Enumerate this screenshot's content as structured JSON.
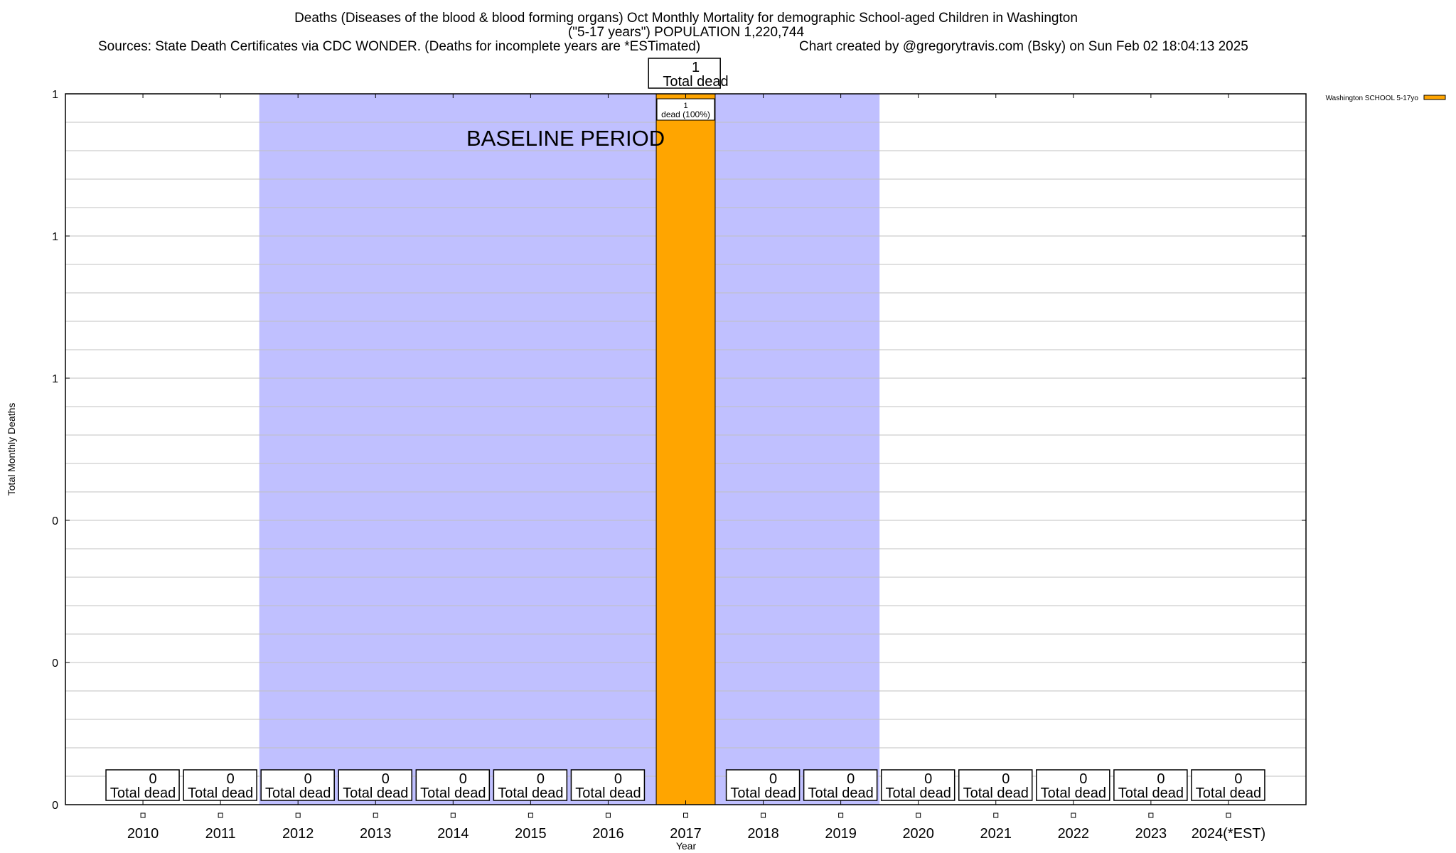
{
  "chart_data": {
    "type": "bar",
    "title_lines": [
      "Deaths (Diseases of the blood & blood forming organs) Oct Monthly Mortality for demographic School-aged Children in Washington",
      "(\"5-17 years\") POPULATION 1,220,744"
    ],
    "sources": "Sources: State Death Certificates via CDC WONDER. (Deaths for incomplete years are *ESTimated)",
    "credit": "Chart created by @gregorytravis.com (Bsky) on Sun Feb 02 18:04:13 2025",
    "xlabel": "Year",
    "ylabel": "Total Monthly Deaths",
    "categories": [
      "2010",
      "2011",
      "2012",
      "2013",
      "2014",
      "2015",
      "2016",
      "2017",
      "2018",
      "2019",
      "2020",
      "2021",
      "2022",
      "2023",
      "2024(*EST)"
    ],
    "series": [
      {
        "name": "Washington SCHOOL 5-17yo",
        "color": "#ffa500",
        "values": [
          0,
          0,
          0,
          0,
          0,
          0,
          0,
          1,
          0,
          0,
          0,
          0,
          0,
          0,
          0
        ]
      }
    ],
    "total_label_suffix": "Total dead",
    "bar_inner_label": {
      "category": "2017",
      "count": "1",
      "text": "dead (100%)"
    },
    "ylim": [
      0,
      1
    ],
    "yticks": [
      0,
      0.2,
      0.4,
      0.6,
      0.8,
      1.0
    ],
    "ytick_labels": [
      "0",
      "0",
      "0",
      "1",
      "1",
      "1"
    ],
    "grid": true,
    "baseline": {
      "label": "BASELINE PERIOD",
      "from": "2012",
      "to": "2019",
      "color": "#c0c0ff"
    },
    "legend_position": "top-right"
  }
}
